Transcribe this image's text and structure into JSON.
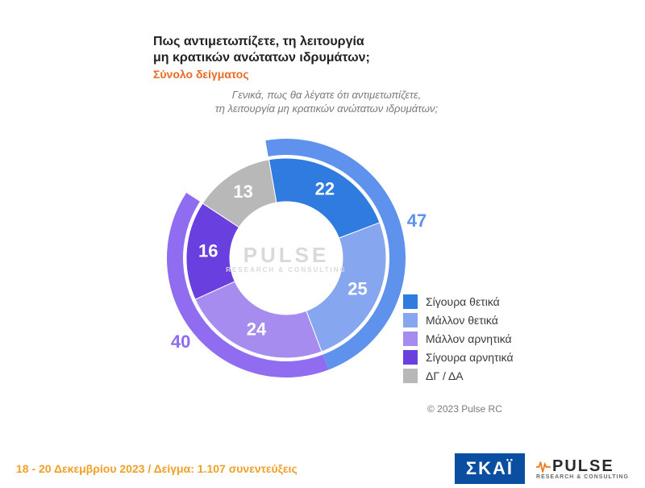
{
  "title": {
    "line1": "Πως αντιμετωπίζετε, τη λειτουργία",
    "line2": "μη κρατικών ανώτατων ιδρυμάτων;",
    "sub": "Σύνολο δείγματος",
    "question_l1": "Γενικά, πως θα λέγατε ότι αντιμετωπίζετε,",
    "question_l2": "τη λειτουργία μη κρατικών ανώτατων ιδρυμάτων;",
    "title_fontsize": 16,
    "sub_color": "#e86a24",
    "question_color": "#7a7a7a"
  },
  "chart": {
    "type": "donut-double",
    "background_color": "#ffffff",
    "center_logo_text": "PULSE",
    "center_logo_sub": "RESEARCH & CONSULTING",
    "inner_ring": {
      "r_inner": 70,
      "r_outer": 124,
      "segments": [
        {
          "key": "sigoura_thetika",
          "label": "Σίγουρα θετικά",
          "value": 22,
          "color": "#2f7be0"
        },
        {
          "key": "mallon_thetika",
          "label": "Μάλλον θετικά",
          "value": 25,
          "color": "#86a6f0"
        },
        {
          "key": "mallon_arnitika",
          "label": "Μάλλον αρνητικά",
          "value": 24,
          "color": "#a78cf0"
        },
        {
          "key": "sigoura_arnitika",
          "label": "Σίγουρα αρνητικά",
          "value": 16,
          "color": "#6a3fe0"
        },
        {
          "key": "dg_da",
          "label": "ΔΓ / ΔΑ",
          "value": 13,
          "color": "#b8b8b8"
        }
      ],
      "value_label_fontsize": 22,
      "value_label_color": "#ffffff"
    },
    "outer_ring": {
      "r_inner": 128,
      "r_outer": 148,
      "segments": [
        {
          "key": "thetika_total",
          "value": 47,
          "color": "#5f92ec",
          "span_keys": [
            "sigoura_thetika",
            "mallon_thetika"
          ],
          "label_color": "#5f92ec"
        },
        {
          "key": "arnitika_total",
          "value": 40,
          "color": "#8f6cf0",
          "span_keys": [
            "mallon_arnitika",
            "sigoura_arnitika"
          ],
          "label_color": "#8f6cf0"
        }
      ],
      "outer_label_fontsize": 22
    },
    "start_angle_deg": -10
  },
  "legend": {
    "items": [
      {
        "label": "Σίγουρα θετικά",
        "color": "#2f7be0"
      },
      {
        "label": "Μάλλον θετικά",
        "color": "#86a6f0"
      },
      {
        "label": "Μάλλον αρνητικά",
        "color": "#a78cf0"
      },
      {
        "label": "Σίγουρα αρνητικά",
        "color": "#6a3fe0"
      },
      {
        "label": "ΔΓ / ΔΑ",
        "color": "#b8b8b8"
      }
    ],
    "fontsize": 14
  },
  "copyright": "© 2023 Pulse RC",
  "footer": {
    "text": "18 - 20  Δεκεμβρίου  2023  /  Δείγμα:  1.107 συνεντεύξεις",
    "text_color": "#f0a028",
    "skai_label": "ΣΚΑΪ",
    "skai_bg": "#0a4ea2",
    "pulse_label": "PULSE",
    "pulse_sub": "RESEARCH & CONSULTING"
  }
}
